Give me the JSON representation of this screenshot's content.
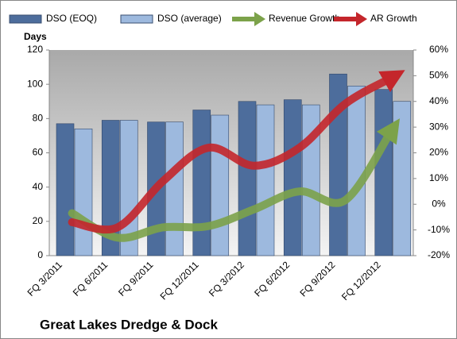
{
  "chart_data": {
    "type": "bar-line",
    "title": "Great Lakes Dredge & Dock",
    "y_label": "Days",
    "categories": [
      "FQ 3/2011",
      "FQ 6/2011",
      "FQ 9/2011",
      "FQ 12/2011",
      "FQ 3/2012",
      "FQ 6/2012",
      "FQ 9/2012",
      "FQ 12/2012"
    ],
    "series": [
      {
        "name": "DSO (EOQ)",
        "type": "bar",
        "color": "#4d6d9c",
        "values": [
          77,
          79,
          78,
          85,
          90,
          91,
          106,
          97
        ]
      },
      {
        "name": "DSO (average)",
        "type": "bar",
        "color": "#9db9de",
        "values": [
          74,
          79,
          78,
          82,
          88,
          88,
          99,
          90
        ]
      },
      {
        "name": "Revenue Growth",
        "type": "line",
        "axis": "y2",
        "color": "#7ca24a",
        "values": [
          -3.5,
          -13,
          -9,
          -8.5,
          -2,
          5,
          1.5,
          28
        ]
      },
      {
        "name": "AR Growth",
        "type": "line",
        "axis": "y2",
        "color": "#c4262b",
        "values": [
          -7,
          -9,
          9,
          22,
          15,
          22,
          39,
          49
        ]
      }
    ],
    "ylim": [
      0,
      120
    ],
    "yticks": [
      0,
      20,
      40,
      60,
      80,
      100,
      120
    ],
    "y2lim": [
      -20,
      60
    ],
    "y2ticks": [
      {
        "value": -20,
        "label": "-20%"
      },
      {
        "value": -10,
        "label": "-10%"
      },
      {
        "value": 0,
        "label": "0%"
      },
      {
        "value": 10,
        "label": "10%"
      },
      {
        "value": 20,
        "label": "20%"
      },
      {
        "value": 30,
        "label": "30%"
      },
      {
        "value": 40,
        "label": "40%"
      },
      {
        "value": 50,
        "label": "50%"
      },
      {
        "value": 60,
        "label": "60%"
      }
    ],
    "legend": "top"
  }
}
